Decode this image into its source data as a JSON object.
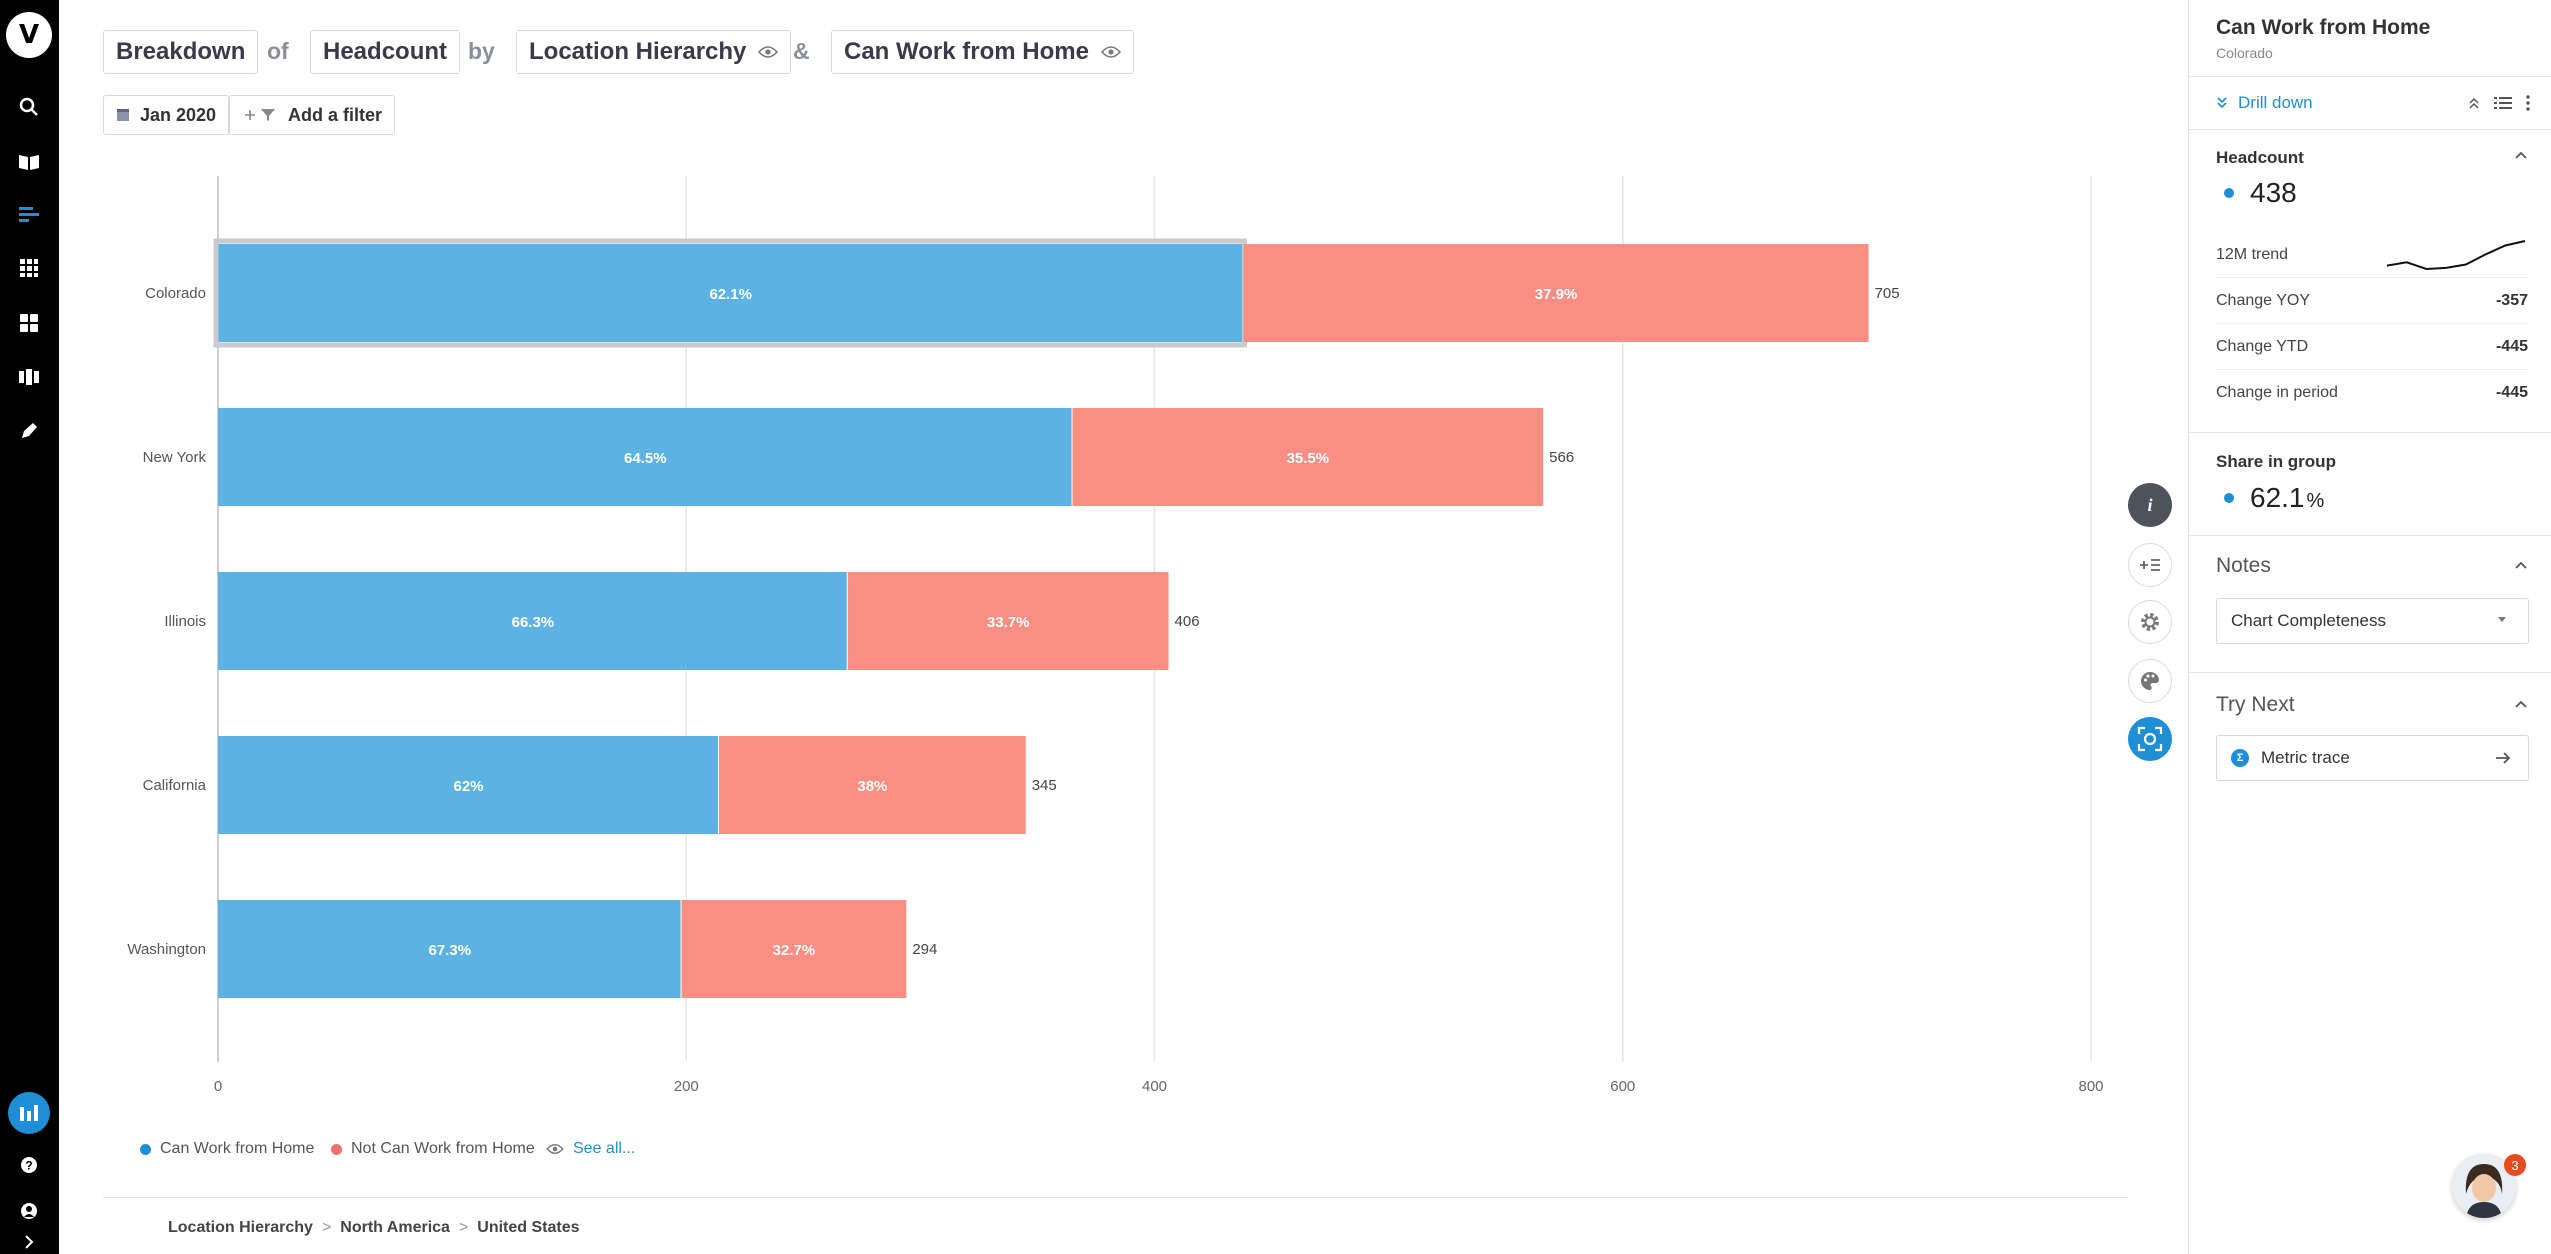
{
  "app": {
    "logo_letter": "V"
  },
  "query": {
    "breakdown": "Breakdown",
    "of": "of",
    "metric": "Headcount",
    "by": "by",
    "group_by": "Location Hierarchy",
    "amp": "&",
    "split": "Can Work from Home"
  },
  "filters": {
    "date": "Jan 2020",
    "add_filter": "Add a filter"
  },
  "chart_data": {
    "type": "bar",
    "orientation": "horizontal",
    "stacked": true,
    "categories": [
      "Colorado",
      "New York",
      "Illinois",
      "California",
      "Washington"
    ],
    "totals": [
      705,
      566,
      406,
      345,
      294
    ],
    "series": [
      {
        "name": "Can Work from Home",
        "color": "#5cb2e3",
        "values": [
          438,
          365,
          269,
          214,
          198
        ],
        "labels": [
          "62.1%",
          "64.5%",
          "66.3%",
          "62%",
          "67.3%"
        ]
      },
      {
        "name": "Not Can Work from Home",
        "color": "#fa8e82",
        "values": [
          267,
          201,
          137,
          131,
          96
        ],
        "labels": [
          "37.9%",
          "35.5%",
          "33.7%",
          "38%",
          "32.7%"
        ]
      }
    ],
    "xlim": [
      0,
      800
    ],
    "xticks": [
      "0",
      "200",
      "400",
      "600",
      "800"
    ],
    "grid": true,
    "selected": "Colorado"
  },
  "legend": {
    "items": [
      {
        "label": "Can Work from Home",
        "color": "#1e8fd6"
      },
      {
        "label": "Not Can Work from Home",
        "color": "#f06f6f"
      }
    ],
    "see_all": "See all..."
  },
  "breadcrumb": [
    "Location Hierarchy",
    "North America",
    "United States"
  ],
  "breadcrumb_sep": ">",
  "panel": {
    "title": "Can Work from Home",
    "subtitle": "Colorado",
    "drill_down": "Drill down",
    "headcount": {
      "title": "Headcount",
      "value": "438",
      "trend_label": "12M trend",
      "trend": [
        30,
        33,
        27,
        28,
        31,
        40,
        48,
        52
      ],
      "rows": [
        {
          "label": "Change YOY",
          "value": "-357"
        },
        {
          "label": "Change YTD",
          "value": "-445"
        },
        {
          "label": "Change in period",
          "value": "-445"
        }
      ]
    },
    "share": {
      "title": "Share in group",
      "value": "62.1",
      "unit": "%"
    },
    "notes": {
      "title": "Notes",
      "select": "Chart Completeness"
    },
    "try_next": {
      "title": "Try Next",
      "item": "Metric trace"
    }
  },
  "chat": {
    "badge": "3"
  }
}
